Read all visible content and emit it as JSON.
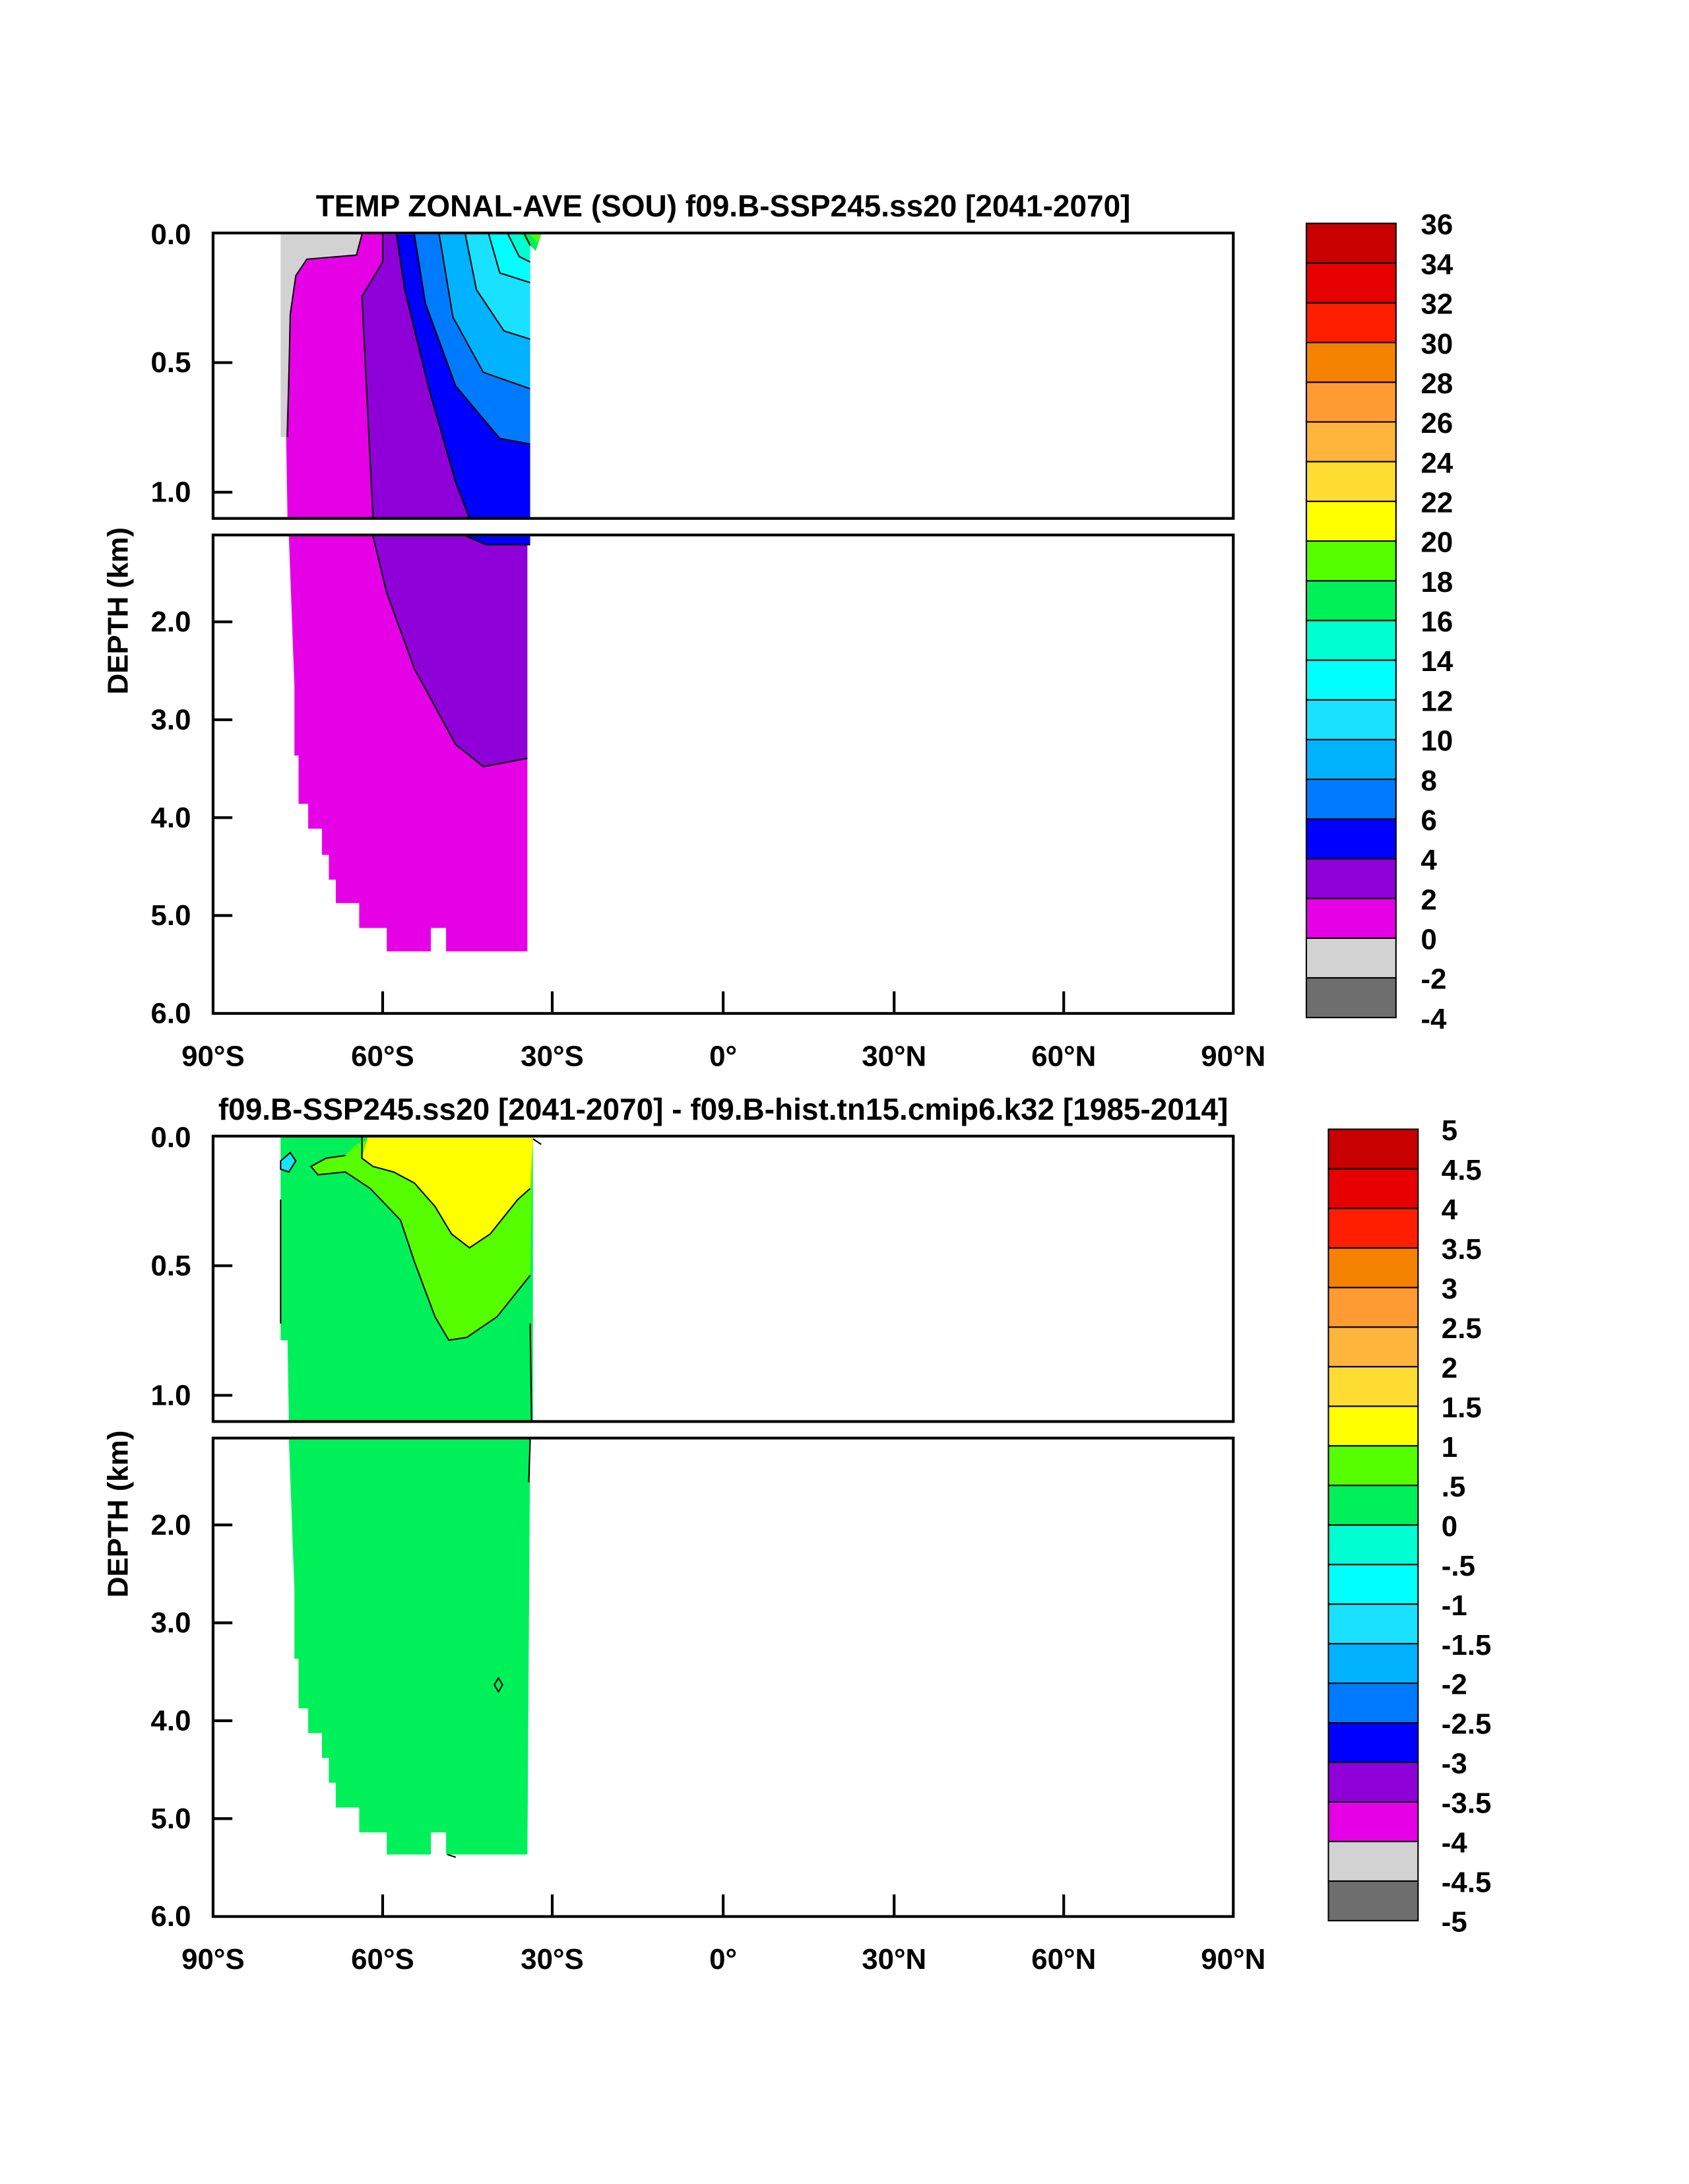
{
  "chart_data": [
    {
      "type": "heatmap",
      "title": "TEMP ZONAL-AVE (SOU) f09.B-SSP245.ss20 [2041-2070]",
      "xlabel": "",
      "ylabel": "DEPTH (km)",
      "xlim": [
        -90,
        90
      ],
      "ylim": [
        0,
        6
      ],
      "x_ticks": [
        "90°S",
        "60°S",
        "30°S",
        "0°",
        "30°N",
        "60°N",
        "90°N"
      ],
      "y_ticks_upper": [
        "0.0",
        "0.5",
        "1.0"
      ],
      "y_ticks_lower": [
        "2.0",
        "3.0",
        "4.0",
        "5.0",
        "6.0"
      ],
      "colorbar_levels": [
        "-4",
        "-2",
        "0",
        "2",
        "4",
        "6",
        "8",
        "10",
        "12",
        "14",
        "16",
        "18",
        "20",
        "22",
        "24",
        "26",
        "28",
        "30",
        "32",
        "34",
        "36"
      ],
      "colorbar_colors": [
        "#6e6e6e",
        "#d2d2d2",
        "#e600e6",
        "#8f00d9",
        "#0000ff",
        "#007bff",
        "#00b2ff",
        "#19e1ff",
        "#00ffff",
        "#00ffd2",
        "#00f05a",
        "#55ff00",
        "#ffff00",
        "#ffdc32",
        "#ffb43c",
        "#ff9b32",
        "#f58200",
        "#ff1e00",
        "#e60000",
        "#c80000"
      ]
    },
    {
      "type": "heatmap",
      "title": "f09.B-SSP245.ss20 [2041-2070] - f09.B-hist.tn15.cmip6.k32 [1985-2014]",
      "xlabel": "",
      "ylabel": "DEPTH (km)",
      "xlim": [
        -90,
        90
      ],
      "ylim": [
        0,
        6
      ],
      "x_ticks": [
        "90°S",
        "60°S",
        "30°S",
        "0°",
        "30°N",
        "60°N",
        "90°N"
      ],
      "y_ticks_upper": [
        "0.0",
        "0.5",
        "1.0"
      ],
      "y_ticks_lower": [
        "2.0",
        "3.0",
        "4.0",
        "5.0",
        "6.0"
      ],
      "colorbar_levels": [
        "-5",
        "-4.5",
        "-4",
        "-3.5",
        "-3",
        "-2.5",
        "-2",
        "-1.5",
        "-1",
        "-.5",
        "0",
        ".5",
        "1",
        "1.5",
        "2",
        "2.5",
        "3",
        "3.5",
        "4",
        "4.5",
        "5"
      ],
      "colorbar_colors": [
        "#6e6e6e",
        "#d2d2d2",
        "#e600e6",
        "#8f00d9",
        "#0000ff",
        "#007bff",
        "#00b2ff",
        "#19e1ff",
        "#00ffff",
        "#00ffd2",
        "#00f05a",
        "#55ff00",
        "#ffff00",
        "#ffdc32",
        "#ffb43c",
        "#ff9b32",
        "#f58200",
        "#ff1e00",
        "#e60000",
        "#c80000"
      ]
    }
  ]
}
